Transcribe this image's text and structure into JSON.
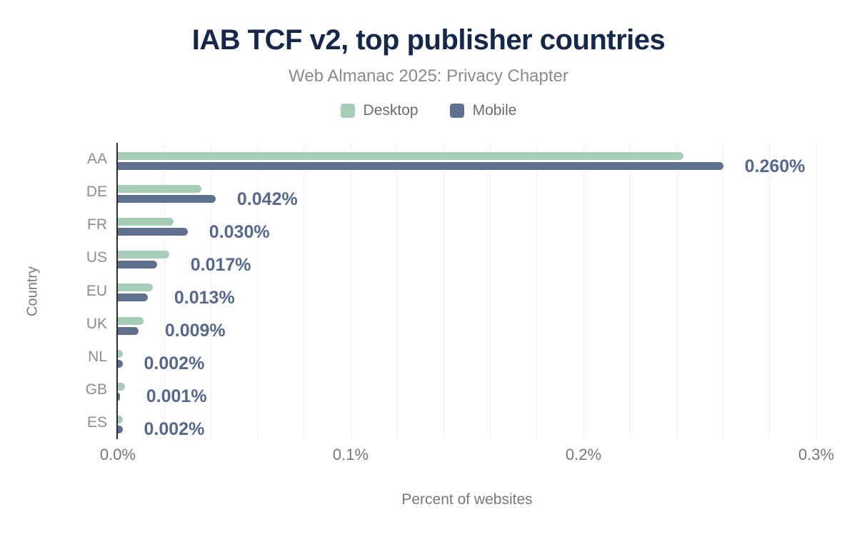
{
  "header": {
    "title": "IAB TCF v2, top publisher countries",
    "subtitle": "Web Almanac 2025: Privacy Chapter"
  },
  "legend": {
    "items": [
      {
        "label": "Desktop",
        "color": "#a7ccb8"
      },
      {
        "label": "Mobile",
        "color": "#5f718d"
      }
    ]
  },
  "chart_data": {
    "type": "bar",
    "orientation": "horizontal",
    "title": "IAB TCF v2, top publisher countries",
    "subtitle": "Web Almanac 2025: Privacy Chapter",
    "xlabel": "Percent of websites",
    "ylabel": "Country",
    "xlim": [
      0,
      0.3
    ],
    "grid": true,
    "grid_interval": 0.02,
    "legend_position": "top",
    "categories": [
      "AA",
      "DE",
      "FR",
      "US",
      "EU",
      "UK",
      "NL",
      "GB",
      "ES"
    ],
    "series": [
      {
        "name": "Desktop",
        "color": "#a7ccb8",
        "values": [
          0.243,
          0.036,
          0.024,
          0.022,
          0.015,
          0.011,
          0.002,
          0.003,
          0.002
        ]
      },
      {
        "name": "Mobile",
        "color": "#5f718d",
        "values": [
          0.26,
          0.042,
          0.03,
          0.017,
          0.013,
          0.009,
          0.002,
          0.001,
          0.002
        ]
      }
    ],
    "value_labels": [
      "0.260%",
      "0.042%",
      "0.030%",
      "0.017%",
      "0.013%",
      "0.009%",
      "0.002%",
      "0.001%",
      "0.002%"
    ],
    "value_label_color": "#56688c",
    "x_ticks": [
      {
        "value": 0.0,
        "label": "0.0%"
      },
      {
        "value": 0.1,
        "label": "0.1%"
      },
      {
        "value": 0.2,
        "label": "0.2%"
      },
      {
        "value": 0.3,
        "label": "0.3%"
      }
    ]
  }
}
